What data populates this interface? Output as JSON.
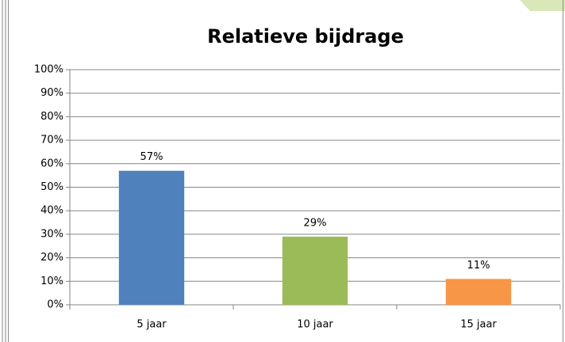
{
  "chart_data": {
    "type": "bar",
    "title": "Relatieve bijdrage",
    "categories": [
      "5 jaar",
      "10 jaar",
      "15 jaar"
    ],
    "values": [
      57,
      29,
      11
    ],
    "value_labels": [
      "57%",
      "29%",
      "11%"
    ],
    "colors": [
      "#4f81bd",
      "#9bbb59",
      "#f79646"
    ],
    "ylim": [
      0,
      100
    ],
    "yticks": [
      {
        "value": 0,
        "label": "0%"
      },
      {
        "value": 10,
        "label": "10%"
      },
      {
        "value": 20,
        "label": "20%"
      },
      {
        "value": 30,
        "label": "30%"
      },
      {
        "value": 40,
        "label": "40%"
      },
      {
        "value": 50,
        "label": "50%"
      },
      {
        "value": 60,
        "label": "60%"
      },
      {
        "value": 70,
        "label": "70%"
      },
      {
        "value": 80,
        "label": "80%"
      },
      {
        "value": 90,
        "label": "90%"
      },
      {
        "value": 100,
        "label": "100%"
      }
    ],
    "grid": true
  }
}
